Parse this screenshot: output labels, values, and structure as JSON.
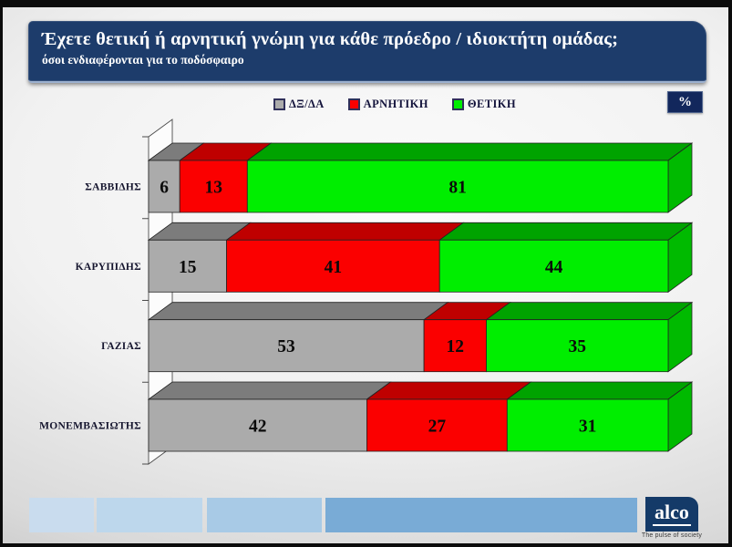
{
  "header": {
    "title": "Έχετε θετική ή αρνητική γνώμη για κάθε πρόεδρο / ιδιοκτήτη ομάδας;",
    "subtitle": "όσοι ενδιαφέρονται για το ποδόσφαιρο"
  },
  "percent_badge": "%",
  "chart_data": {
    "type": "bar",
    "orientation": "horizontal",
    "stacked": true,
    "style": "3d",
    "unit": "percent",
    "xlim": [
      0,
      100
    ],
    "legend_position": "top",
    "value_labels": "inside",
    "categories": [
      "ΣΑΒΒΙΔΗΣ",
      "ΚΑΡΥΠΙΔΗΣ",
      "ΓΑΖΙΑΣ",
      "ΜΟΝΕΜΒΑΣΙΩΤΗΣ"
    ],
    "series": [
      {
        "name": "ΔΞ/ΔΑ",
        "values": [
          6,
          15,
          53,
          42
        ],
        "color": "#ababab",
        "top_color": "#7c7c7c",
        "side_color": "#8f8f8f"
      },
      {
        "name": "ΑΡΝΗΤΙΚΗ",
        "values": [
          13,
          41,
          12,
          27
        ],
        "color": "#fb0000",
        "top_color": "#bf0000",
        "side_color": "#d40000"
      },
      {
        "name": "ΘΕΤΙΚΗ",
        "values": [
          81,
          44,
          35,
          31
        ],
        "color": "#00ee00",
        "top_color": "#00a300",
        "side_color": "#00ba00"
      }
    ]
  },
  "footer": {
    "bars": [
      "#c9dcee",
      "#bdd7ec",
      "#a8cae6",
      "#79abd6"
    ],
    "logo": {
      "text": "alco",
      "tagline": "The pulse of society"
    }
  },
  "colors": {
    "header_bg": "#1d3c6b",
    "badge_bg": "#12275c",
    "logo_bg": "#143a68",
    "label_color": "#15152e",
    "value_color": "#0a0a0a"
  }
}
